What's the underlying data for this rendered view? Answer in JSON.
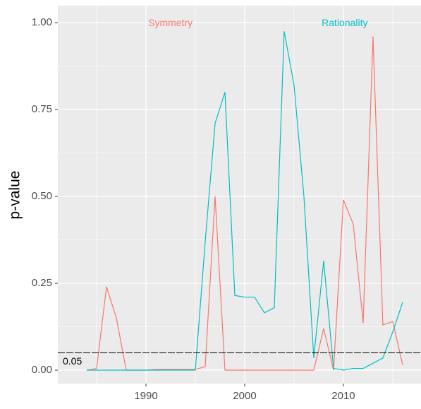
{
  "chart_data": {
    "type": "line",
    "y_label": "p-value",
    "x": [
      1984,
      1985,
      1986,
      1987,
      1988,
      1989,
      1990,
      1991,
      1992,
      1993,
      1994,
      1995,
      1996,
      1997,
      1998,
      1999,
      2000,
      2001,
      2002,
      2003,
      2004,
      2005,
      2006,
      2007,
      2008,
      2009,
      2010,
      2011,
      2012,
      2013,
      2014,
      2015,
      2016
    ],
    "series": [
      {
        "name": "Symmetry",
        "color": "#F8766D",
        "values": [
          0,
          0.005,
          0.24,
          0.15,
          0,
          0,
          0,
          0.002,
          0.002,
          0.002,
          0.002,
          0.002,
          0.01,
          0.5,
          0,
          0,
          0,
          0,
          0,
          0,
          0,
          0,
          0,
          0,
          0.12,
          0,
          0.49,
          0.42,
          0.135,
          0.96,
          0.13,
          0.14,
          0.015
        ]
      },
      {
        "name": "Rationality",
        "color": "#00BFC4",
        "values": [
          0,
          0,
          0,
          0,
          0,
          0,
          0,
          0,
          0,
          0,
          0,
          0,
          0.37,
          0.71,
          0.8,
          0.215,
          0.21,
          0.21,
          0.165,
          0.18,
          0.975,
          0.82,
          0.5,
          0.035,
          0.315,
          0.005,
          0,
          0.005,
          0.005,
          0.02,
          0.035,
          0.11,
          0.195
        ]
      }
    ],
    "hline": {
      "value": 0.05,
      "label": "0.05"
    },
    "xlim": [
      1981.07,
      2017.86
    ],
    "ylim": [
      -0.0386,
      1.0488
    ],
    "xticks": [
      1990,
      2000,
      2010
    ],
    "yticks": [
      {
        "value": 0,
        "label": "0.00"
      },
      {
        "value": 0.25,
        "label": "0.25"
      },
      {
        "value": 0.5,
        "label": "0.50"
      },
      {
        "value": 0.75,
        "label": "0.75"
      },
      {
        "value": 1,
        "label": "1.00"
      }
    ],
    "grid": true
  }
}
